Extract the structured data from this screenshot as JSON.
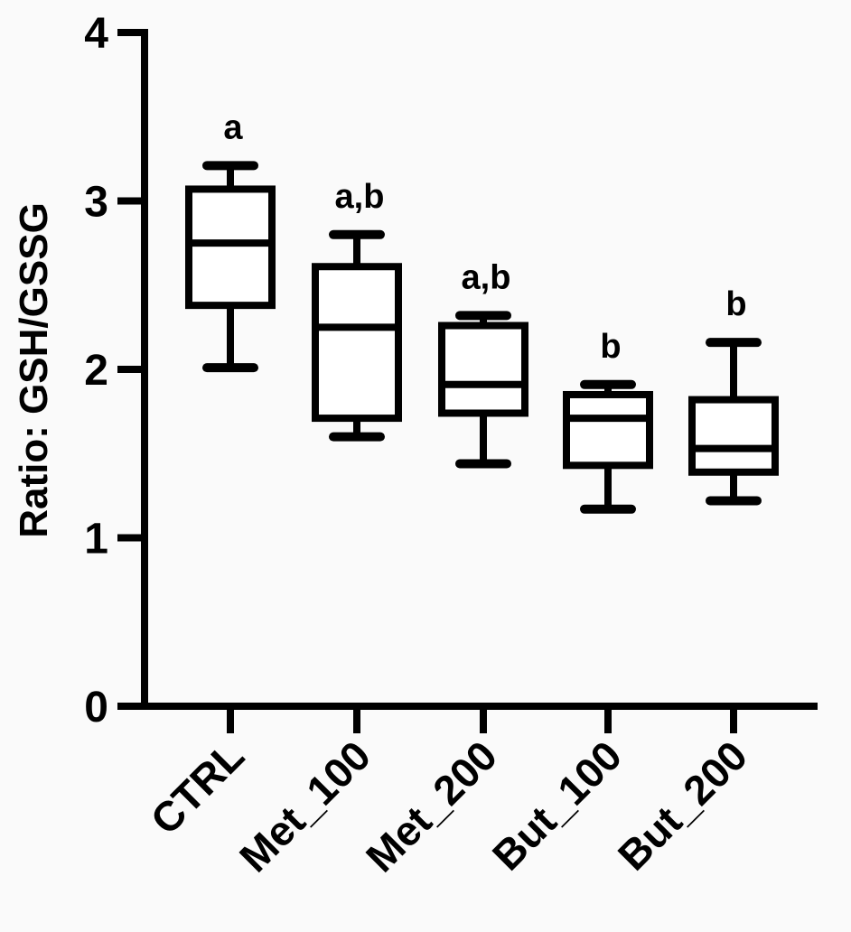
{
  "chart_data": {
    "type": "box",
    "title": "",
    "xlabel": "",
    "ylabel": "Ratio: GSH/GSSG",
    "ylim": [
      0,
      4
    ],
    "yticks": [
      0,
      1,
      2,
      3,
      4
    ],
    "grid": false,
    "categories": [
      "CTRL",
      "Met_100",
      "Met_200",
      "But_100",
      "But_200"
    ],
    "boxes": [
      {
        "min": 2.01,
        "q1": 2.38,
        "median": 2.75,
        "q3": 3.07,
        "max": 3.21,
        "label": "a"
      },
      {
        "min": 1.6,
        "q1": 1.71,
        "median": 2.25,
        "q3": 2.61,
        "max": 2.8,
        "label": "a,b"
      },
      {
        "min": 1.44,
        "q1": 1.74,
        "median": 1.91,
        "q3": 2.26,
        "max": 2.32,
        "label": "a,b"
      },
      {
        "min": 1.17,
        "q1": 1.43,
        "median": 1.71,
        "q3": 1.85,
        "max": 1.91,
        "label": "b"
      },
      {
        "min": 1.22,
        "q1": 1.39,
        "median": 1.53,
        "q3": 1.82,
        "max": 2.16,
        "label": "b"
      }
    ],
    "color": "#000000"
  }
}
